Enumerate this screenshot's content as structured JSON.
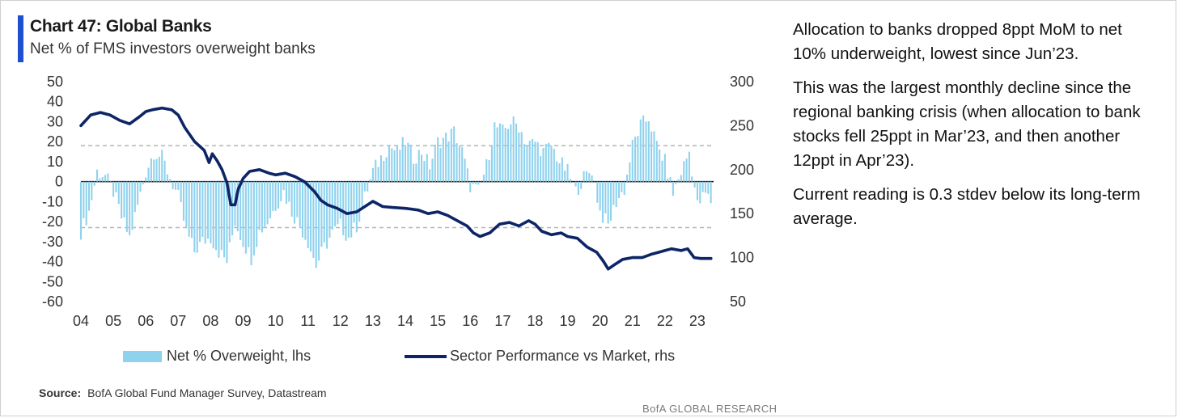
{
  "header": {
    "title": "Chart 47: Global Banks",
    "subtitle": "Net % of FMS investors overweight banks"
  },
  "legend": {
    "bars_label": "Net % Overweight, lhs",
    "line_label": "Sector Performance vs Market, rhs"
  },
  "source": {
    "label": "Source:",
    "text": "BofA Global Fund Manager Survey, Datastream"
  },
  "footer": "BofA GLOBAL RESEARCH",
  "commentary": [
    "Allocation to banks dropped 8ppt MoM to net 10% underweight, lowest since Jun’23.",
    "This was the largest monthly decline since the regional banking crisis (when allocation to bank stocks fell 25ppt in Mar’23, and then another 12ppt in Apr’23).",
    "Current reading is 0.3 stdev below its long-term average."
  ],
  "colors": {
    "bars": "#8fd2ee",
    "line": "#0d2566",
    "accent": "#1f4fd1",
    "band": "#b5b5b5"
  },
  "chart_data": {
    "type": "bar",
    "x_ticks": [
      "04",
      "05",
      "06",
      "07",
      "08",
      "09",
      "10",
      "11",
      "12",
      "13",
      "14",
      "15",
      "16",
      "17",
      "18",
      "19",
      "20",
      "21",
      "22",
      "23"
    ],
    "y_left": {
      "ticks": [
        50,
        40,
        30,
        20,
        10,
        0,
        -10,
        -20,
        -30,
        -40,
        -50,
        -60
      ],
      "lim": [
        -60,
        50
      ]
    },
    "y_right": {
      "ticks": [
        300,
        250,
        200,
        150,
        100,
        50
      ],
      "lim": [
        50,
        300
      ]
    },
    "reference_lines_lhs": [
      18,
      0,
      -23
    ],
    "series": [
      {
        "name": "Net % Overweight, lhs",
        "axis": "left",
        "kind": "bar",
        "monthly_from": "2004-01",
        "keys": [
          [
            2004.0,
            -25
          ],
          [
            2004.25,
            -15
          ],
          [
            2004.5,
            5
          ],
          [
            2004.75,
            3
          ],
          [
            2005.0,
            -5
          ],
          [
            2005.25,
            -18
          ],
          [
            2005.5,
            -28
          ],
          [
            2005.75,
            -12
          ],
          [
            2006.0,
            5
          ],
          [
            2006.25,
            15
          ],
          [
            2006.5,
            12
          ],
          [
            2006.75,
            2
          ],
          [
            2007.0,
            -8
          ],
          [
            2007.25,
            -25
          ],
          [
            2007.5,
            -35
          ],
          [
            2007.75,
            -30
          ],
          [
            2008.0,
            -28
          ],
          [
            2008.25,
            -35
          ],
          [
            2008.5,
            -40
          ],
          [
            2008.75,
            -20
          ],
          [
            2009.0,
            -30
          ],
          [
            2009.25,
            -38
          ],
          [
            2009.5,
            -25
          ],
          [
            2009.75,
            -20
          ],
          [
            2010.0,
            -12
          ],
          [
            2010.25,
            -5
          ],
          [
            2010.5,
            -15
          ],
          [
            2010.75,
            -22
          ],
          [
            2011.0,
            -30
          ],
          [
            2011.25,
            -42
          ],
          [
            2011.5,
            -33
          ],
          [
            2011.75,
            -26
          ],
          [
            2012.0,
            -22
          ],
          [
            2012.25,
            -28
          ],
          [
            2012.5,
            -22
          ],
          [
            2012.75,
            -8
          ],
          [
            2013.0,
            5
          ],
          [
            2013.25,
            12
          ],
          [
            2013.5,
            18
          ],
          [
            2013.75,
            15
          ],
          [
            2014.0,
            20
          ],
          [
            2014.25,
            12
          ],
          [
            2014.5,
            15
          ],
          [
            2014.75,
            8
          ],
          [
            2015.0,
            20
          ],
          [
            2015.25,
            22
          ],
          [
            2015.5,
            25
          ],
          [
            2015.75,
            15
          ],
          [
            2016.0,
            -2
          ],
          [
            2016.25,
            -5
          ],
          [
            2016.5,
            8
          ],
          [
            2016.75,
            28
          ],
          [
            2017.0,
            25
          ],
          [
            2017.25,
            30
          ],
          [
            2017.5,
            28
          ],
          [
            2017.75,
            18
          ],
          [
            2018.0,
            20
          ],
          [
            2018.25,
            15
          ],
          [
            2018.5,
            18
          ],
          [
            2018.75,
            10
          ],
          [
            2019.0,
            5
          ],
          [
            2019.25,
            -5
          ],
          [
            2019.5,
            2
          ],
          [
            2019.75,
            6
          ],
          [
            2020.0,
            -15
          ],
          [
            2020.25,
            -22
          ],
          [
            2020.5,
            -10
          ],
          [
            2020.75,
            -4
          ],
          [
            2021.0,
            18
          ],
          [
            2021.25,
            28
          ],
          [
            2021.5,
            32
          ],
          [
            2021.75,
            18
          ],
          [
            2022.0,
            10
          ],
          [
            2022.25,
            -6
          ],
          [
            2022.5,
            5
          ],
          [
            2022.75,
            15
          ],
          [
            2023.0,
            -12
          ],
          [
            2023.25,
            -6
          ],
          [
            2023.42,
            -10
          ]
        ]
      },
      {
        "name": "Sector Performance vs Market, rhs",
        "axis": "right",
        "kind": "line",
        "points": [
          [
            2004.0,
            250
          ],
          [
            2004.3,
            262
          ],
          [
            2004.6,
            265
          ],
          [
            2004.9,
            262
          ],
          [
            2005.2,
            256
          ],
          [
            2005.5,
            252
          ],
          [
            2005.8,
            260
          ],
          [
            2006.0,
            266
          ],
          [
            2006.2,
            268
          ],
          [
            2006.5,
            270
          ],
          [
            2006.8,
            268
          ],
          [
            2007.0,
            262
          ],
          [
            2007.2,
            248
          ],
          [
            2007.5,
            232
          ],
          [
            2007.8,
            222
          ],
          [
            2007.95,
            208
          ],
          [
            2008.05,
            218
          ],
          [
            2008.2,
            210
          ],
          [
            2008.35,
            200
          ],
          [
            2008.5,
            185
          ],
          [
            2008.62,
            160
          ],
          [
            2008.75,
            160
          ],
          [
            2008.85,
            178
          ],
          [
            2009.0,
            190
          ],
          [
            2009.2,
            198
          ],
          [
            2009.5,
            200
          ],
          [
            2009.8,
            196
          ],
          [
            2010.0,
            194
          ],
          [
            2010.3,
            196
          ],
          [
            2010.6,
            192
          ],
          [
            2010.9,
            186
          ],
          [
            2011.2,
            175
          ],
          [
            2011.4,
            165
          ],
          [
            2011.6,
            160
          ],
          [
            2011.9,
            156
          ],
          [
            2012.2,
            150
          ],
          [
            2012.5,
            152
          ],
          [
            2012.75,
            158
          ],
          [
            2013.0,
            164
          ],
          [
            2013.3,
            158
          ],
          [
            2013.6,
            157
          ],
          [
            2014.0,
            156
          ],
          [
            2014.4,
            154
          ],
          [
            2014.7,
            150
          ],
          [
            2015.0,
            152
          ],
          [
            2015.3,
            148
          ],
          [
            2015.6,
            142
          ],
          [
            2015.9,
            136
          ],
          [
            2016.1,
            128
          ],
          [
            2016.3,
            124
          ],
          [
            2016.6,
            128
          ],
          [
            2016.9,
            138
          ],
          [
            2017.2,
            140
          ],
          [
            2017.5,
            136
          ],
          [
            2017.8,
            142
          ],
          [
            2018.0,
            138
          ],
          [
            2018.2,
            130
          ],
          [
            2018.5,
            126
          ],
          [
            2018.8,
            128
          ],
          [
            2019.0,
            124
          ],
          [
            2019.3,
            122
          ],
          [
            2019.6,
            112
          ],
          [
            2019.9,
            106
          ],
          [
            2020.1,
            96
          ],
          [
            2020.25,
            87
          ],
          [
            2020.45,
            92
          ],
          [
            2020.7,
            98
          ],
          [
            2021.0,
            100
          ],
          [
            2021.3,
            100
          ],
          [
            2021.6,
            104
          ],
          [
            2021.8,
            106
          ],
          [
            2022.0,
            108
          ],
          [
            2022.2,
            110
          ],
          [
            2022.5,
            108
          ],
          [
            2022.7,
            110
          ],
          [
            2022.9,
            100
          ],
          [
            2023.1,
            99
          ],
          [
            2023.3,
            99
          ],
          [
            2023.42,
            99
          ]
        ]
      }
    ]
  }
}
